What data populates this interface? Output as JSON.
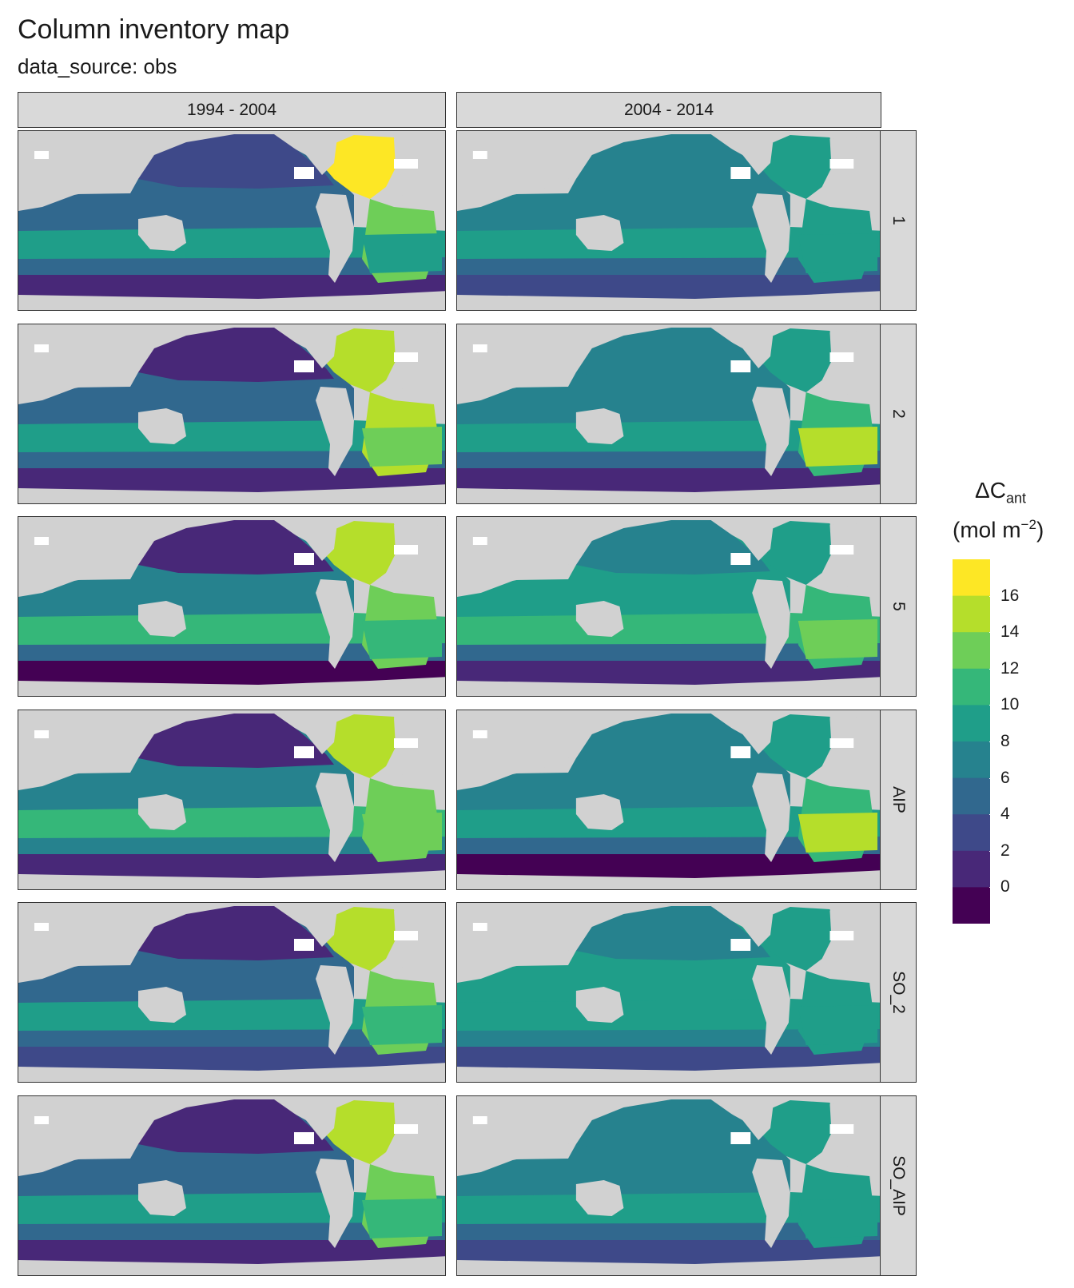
{
  "title": "Column inventory map",
  "subtitle": "data_source: obs",
  "columns": [
    "1994 - 2004",
    "2004 - 2014"
  ],
  "rows": [
    "1",
    "2",
    "5",
    "AIP",
    "SO_2",
    "SO_AIP"
  ],
  "legend": {
    "title_main": "ΔC",
    "title_sub": "ant",
    "unit_prefix": "(mol m",
    "unit_exp": "−2",
    "unit_suffix": ")",
    "breaks": [
      "16",
      "14",
      "12",
      "10",
      "8",
      "6",
      "4",
      "2",
      "0"
    ],
    "colors": [
      "#fde725",
      "#b5de2b",
      "#6ece58",
      "#35b779",
      "#1f9e89",
      "#26828e",
      "#31688e",
      "#3e4989",
      "#482878",
      "#440154"
    ]
  },
  "colors": {
    "land": "#d1d1d1",
    "strip": "#d9d9d9",
    "ice": "#ffffff"
  },
  "chart_data": {
    "type": "heatmap",
    "title": "Column inventory map",
    "subtitle": "data_source: obs",
    "facet_columns": [
      "1994 - 2004",
      "2004 - 2014"
    ],
    "facet_rows": [
      "1",
      "2",
      "5",
      "AIP",
      "SO_2",
      "SO_AIP"
    ],
    "color_scale": "viridis (binned)",
    "legend_breaks": [
      0,
      2,
      4,
      6,
      8,
      10,
      12,
      14,
      16
    ],
    "legend_position": "right",
    "panels": [
      {
        "period": "1994 - 2004",
        "method": "1",
        "north_pacific": 3,
        "subtropics": 9,
        "southern_ocean": 2,
        "north_atlantic": 16,
        "south_atlantic": 10
      },
      {
        "period": "2004 - 2014",
        "method": "1",
        "north_pacific": 7,
        "subtropics": 9,
        "southern_ocean": 3,
        "north_atlantic": 9,
        "south_atlantic": 10
      },
      {
        "period": "1994 - 2004",
        "method": "2",
        "north_pacific": 2,
        "subtropics": 10,
        "southern_ocean": 2,
        "north_atlantic": 15,
        "south_atlantic": 14
      },
      {
        "period": "2004 - 2014",
        "method": "2",
        "north_pacific": 7,
        "subtropics": 9,
        "southern_ocean": 2,
        "north_atlantic": 9,
        "south_atlantic": 15
      },
      {
        "period": "1994 - 2004",
        "method": "5",
        "north_pacific": 1,
        "subtropics": 12,
        "southern_ocean": 0,
        "north_atlantic": 15,
        "south_atlantic": 11
      },
      {
        "period": "2004 - 2014",
        "method": "5",
        "north_pacific": 8,
        "subtropics": 11,
        "southern_ocean": 1,
        "north_atlantic": 9,
        "south_atlantic": 14
      },
      {
        "period": "1994 - 2004",
        "method": "AIP",
        "north_pacific": 1,
        "subtropics": 12,
        "southern_ocean": 2,
        "north_atlantic": 15,
        "south_atlantic": 13
      },
      {
        "period": "2004 - 2014",
        "method": "AIP",
        "north_pacific": 7,
        "subtropics": 9,
        "southern_ocean": 0,
        "north_atlantic": 9,
        "south_atlantic": 15
      },
      {
        "period": "1994 - 2004",
        "method": "SO_2",
        "north_pacific": 2,
        "subtropics": 9,
        "southern_ocean": 3,
        "north_atlantic": 15,
        "south_atlantic": 12
      },
      {
        "period": "2004 - 2014",
        "method": "SO_2",
        "north_pacific": 8,
        "subtropics": 10,
        "southern_ocean": 4,
        "north_atlantic": 10,
        "south_atlantic": 10
      },
      {
        "period": "1994 - 2004",
        "method": "SO_AIP",
        "north_pacific": 1,
        "subtropics": 10,
        "southern_ocean": 2,
        "north_atlantic": 15,
        "south_atlantic": 12
      },
      {
        "period": "2004 - 2014",
        "method": "SO_AIP",
        "north_pacific": 7,
        "subtropics": 9,
        "southern_ocean": 3,
        "north_atlantic": 9,
        "south_atlantic": 10
      }
    ]
  }
}
